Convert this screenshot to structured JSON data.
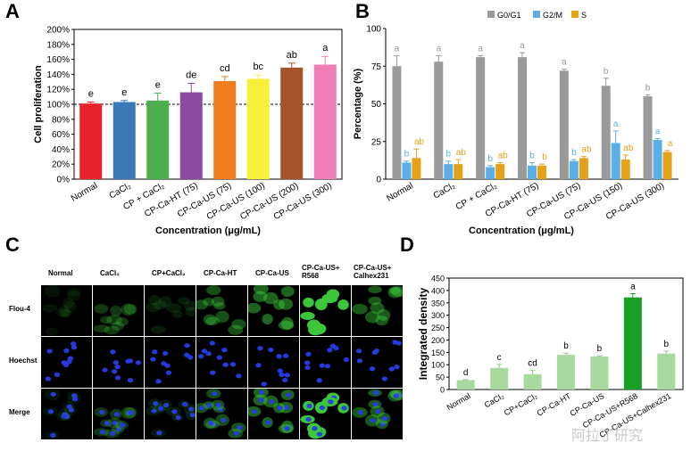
{
  "panels": {
    "A": "A",
    "B": "B",
    "C": "C",
    "D": "D"
  },
  "chart_data": [
    {
      "panel": "A",
      "type": "bar",
      "ylabel": "Cell proliferation",
      "xlabel": "Concentration (μg/mL)",
      "ylim": [
        0,
        200
      ],
      "yticks": [
        "0%",
        "20%",
        "40%",
        "60%",
        "80%",
        "100%",
        "120%",
        "140%",
        "160%",
        "180%",
        "200%"
      ],
      "reference_line": 100,
      "categories": [
        "Normal",
        "CaCl₂",
        "CP + CaCl₂",
        "CP-Ca-HT (75)",
        "CP-Ca-US (75)",
        "CP-Ca-US (100)",
        "CP-Ca-US (200)",
        "CP-Ca-US (300)"
      ],
      "values": [
        101,
        103,
        105,
        116,
        131,
        134,
        149,
        153
      ],
      "errors": [
        2,
        2,
        10,
        12,
        6,
        5,
        6,
        11
      ],
      "letters": [
        "e",
        "e",
        "e",
        "de",
        "cd",
        "bc",
        "ab",
        "a"
      ],
      "colors": [
        "#e8222b",
        "#3a78b6",
        "#4cae4c",
        "#8e49a0",
        "#f07e1e",
        "#f6f03a",
        "#a4542a",
        "#f07fb8"
      ]
    },
    {
      "panel": "B",
      "type": "bar",
      "ylabel": "Percentage (%)",
      "xlabel": "Concentration (μg/mL)",
      "ylim": [
        0,
        100
      ],
      "yticks": [
        "0",
        "25",
        "50",
        "75",
        "100"
      ],
      "categories": [
        "Normal",
        "CaCl₂",
        "CP + CaCl₂",
        "CP-Ca-HT (75)",
        "CP-Ca-US (75)",
        "CP-Ca-US (150)",
        "CP-Ca-US (300)"
      ],
      "series": [
        {
          "name": "G0/G1",
          "color": "#9a9a9a",
          "values": [
            75,
            78,
            81,
            81,
            72,
            62,
            55
          ],
          "errors": [
            7,
            4,
            1,
            3,
            1,
            5,
            1
          ],
          "letters": [
            "a",
            "a",
            "a",
            "a",
            "a",
            "b",
            "b"
          ]
        },
        {
          "name": "G2/M",
          "color": "#5ab0e6",
          "values": [
            11,
            10,
            8,
            9,
            12,
            24,
            26
          ],
          "errors": [
            1,
            2,
            1,
            2,
            1,
            8,
            1
          ],
          "letters": [
            "b",
            "b",
            "b",
            "b",
            "b",
            "a",
            "a"
          ]
        },
        {
          "name": "S",
          "color": "#e6a11a",
          "values": [
            14,
            10,
            10,
            9,
            14,
            13,
            18
          ],
          "errors": [
            6,
            3,
            1,
            1,
            1,
            3,
            1
          ],
          "letters": [
            "ab",
            "ab",
            "ab",
            "b",
            "ab",
            "ab",
            "a"
          ]
        }
      ]
    },
    {
      "panel": "D",
      "type": "bar",
      "ylabel": "Integrated density",
      "ylim": [
        0,
        450
      ],
      "yticks": [
        "0",
        "50",
        "100",
        "150",
        "200",
        "250",
        "300",
        "350",
        "400",
        "450"
      ],
      "categories": [
        "Normal",
        "CaCl₂",
        "CP+CaCl₂",
        "CP-Ca-HT",
        "CP-Ca-US",
        "CP-Ca-US+R568",
        "CP-Ca-US+Calhex231"
      ],
      "values": [
        38,
        87,
        62,
        140,
        133,
        372,
        145
      ],
      "errors": [
        2,
        14,
        15,
        7,
        3,
        15,
        10
      ],
      "letters": [
        "d",
        "c",
        "cd",
        "b",
        "b",
        "a",
        "b"
      ],
      "colors": [
        "#a8d99f",
        "#a8d99f",
        "#a8d99f",
        "#a8d99f",
        "#a8d99f",
        "#17a023",
        "#a8d99f"
      ]
    }
  ],
  "micrographs": {
    "columns": [
      "Normal",
      "CaCl₂",
      "CP+CaCl₂",
      "CP-Ca-HT",
      "CP-Ca-US",
      "CP-Ca-US+\nR568",
      "CP-Ca-US+\nCalhex231"
    ],
    "rows": [
      "Flou-4",
      "Hoechst",
      "Merge"
    ],
    "flou4_intensity": [
      0.08,
      0.25,
      0.12,
      0.35,
      0.45,
      0.9,
      0.4
    ]
  },
  "watermark": "阿拉丁研究"
}
